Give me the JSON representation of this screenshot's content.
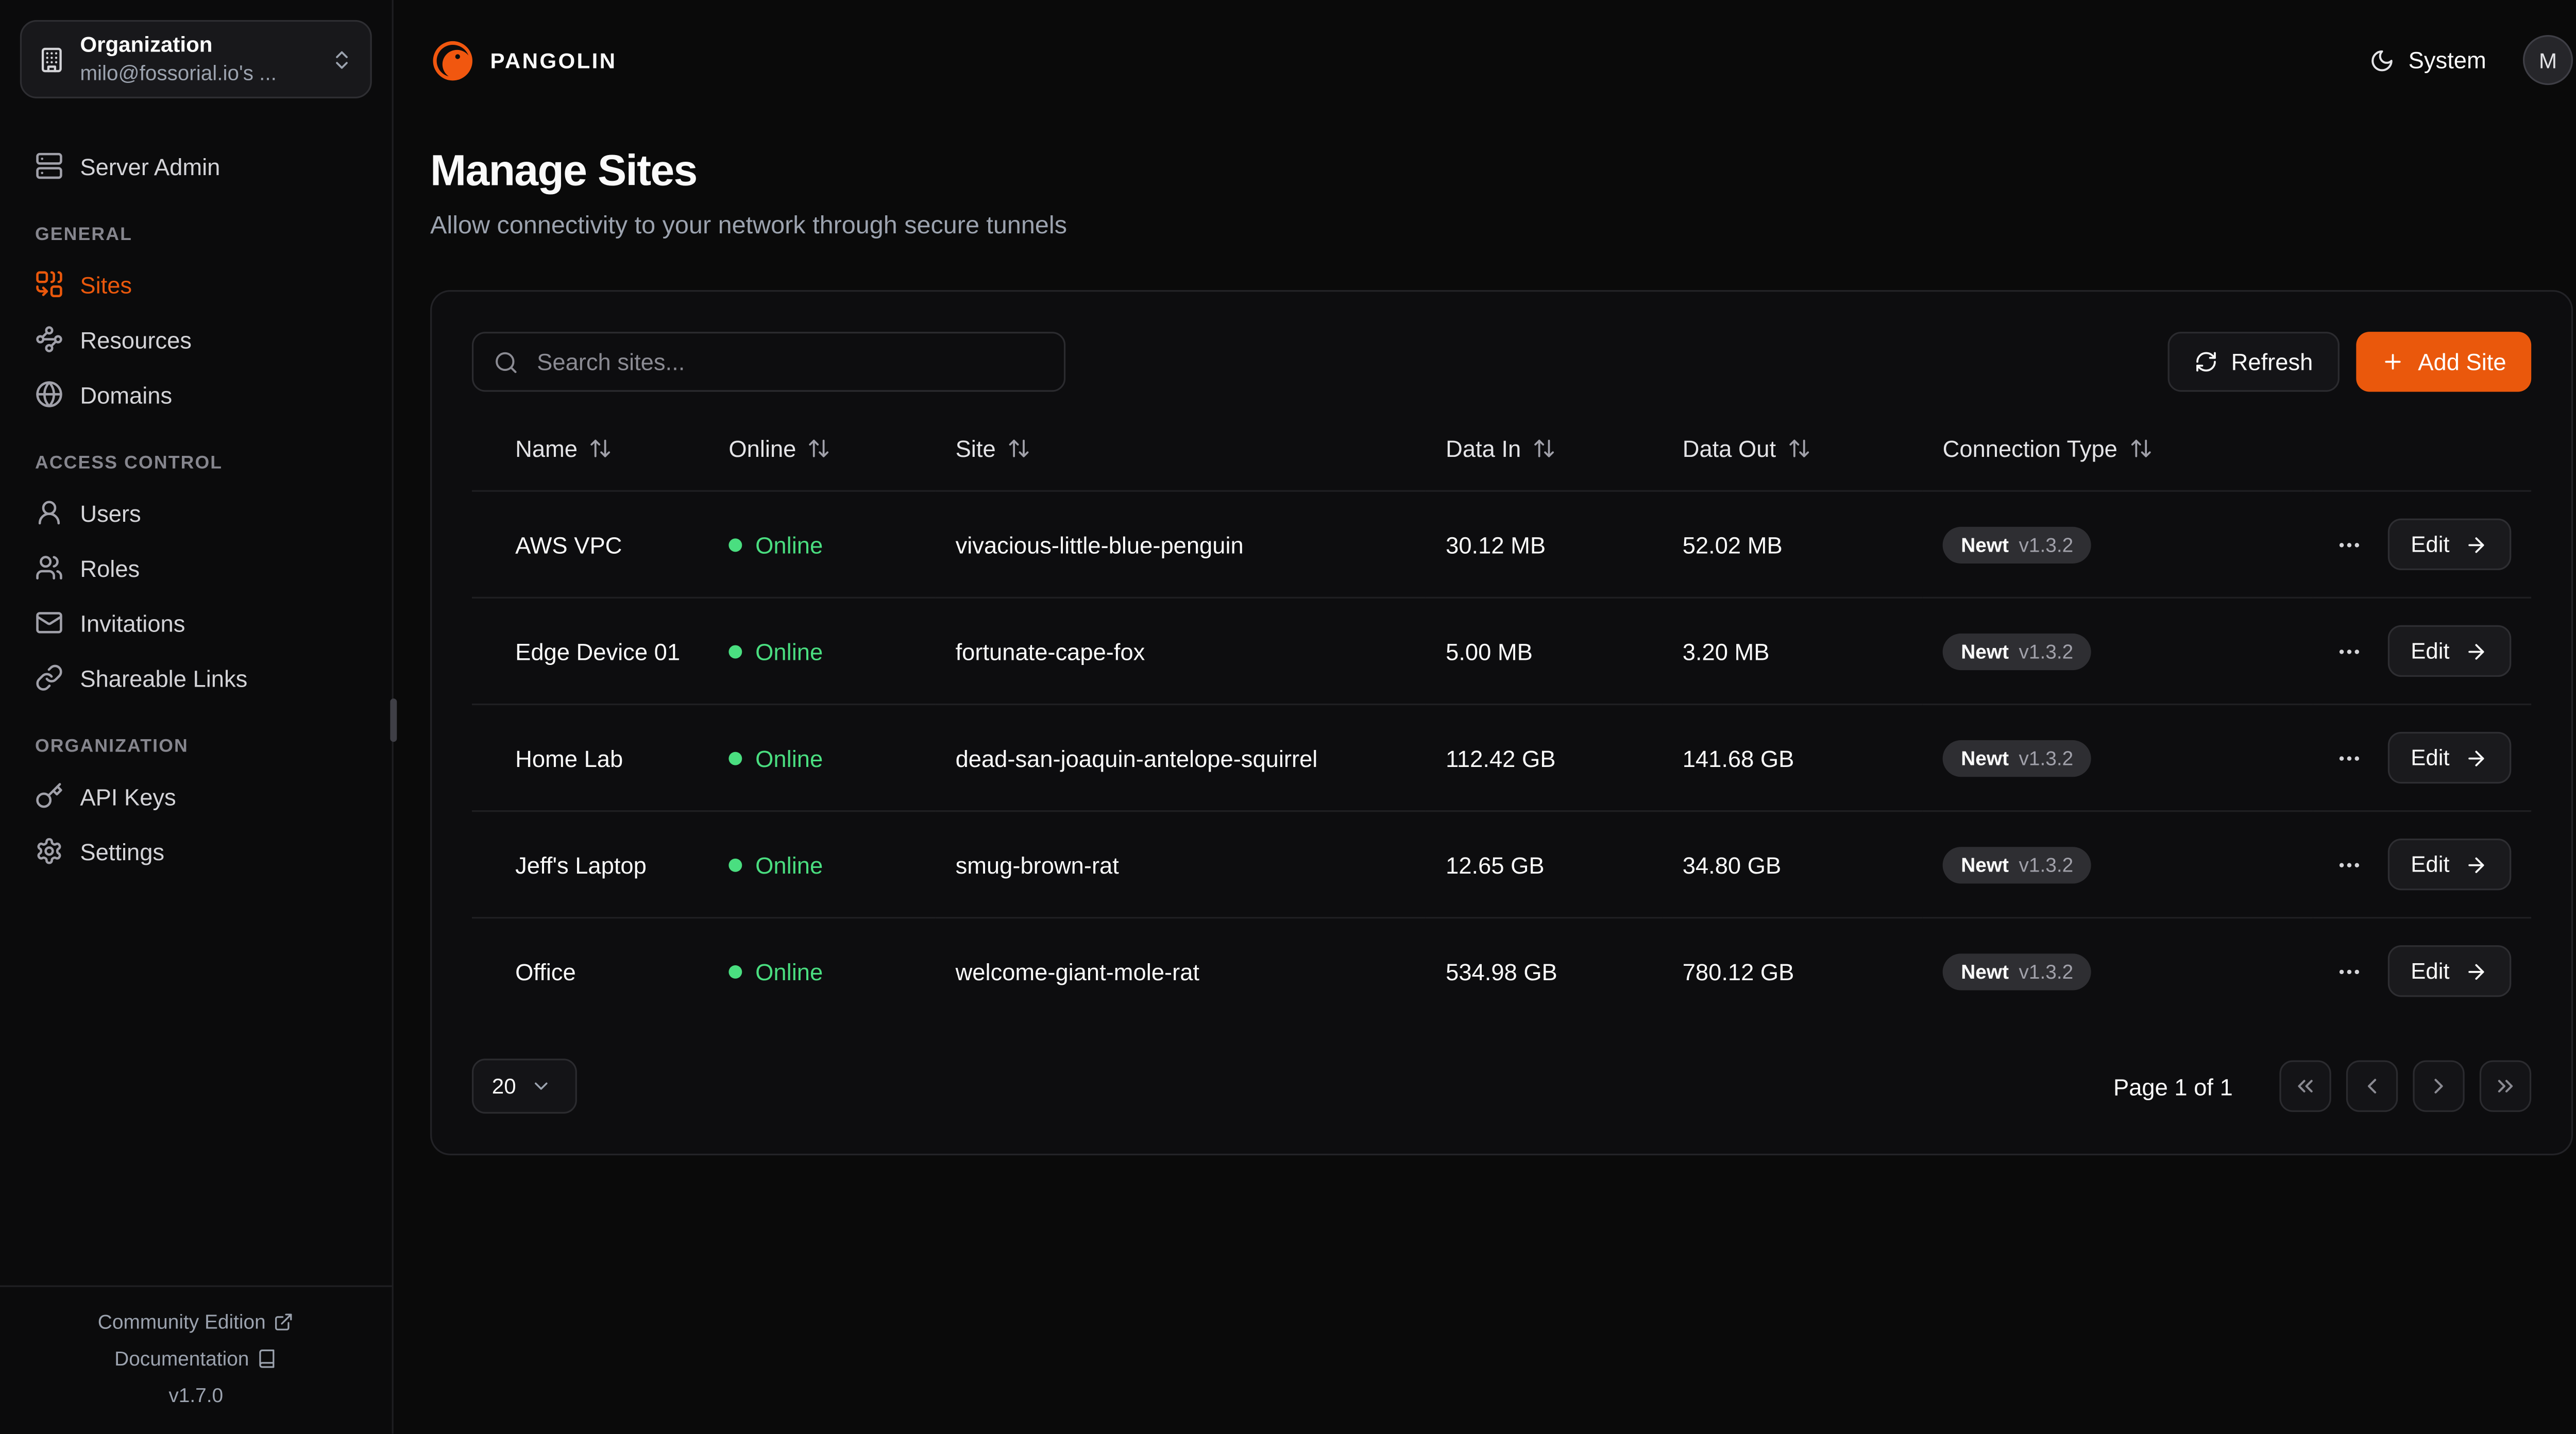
{
  "colors": {
    "accent": "#ea580c",
    "online_green": "#4ade80"
  },
  "sidebar": {
    "org_selector": {
      "title": "Organization",
      "subtitle": "milo@fossorial.io's ...",
      "icon": "building-icon"
    },
    "top_items": [
      {
        "label": "Server Admin",
        "icon": "server-icon"
      }
    ],
    "sections": [
      {
        "label": "GENERAL",
        "items": [
          {
            "label": "Sites",
            "icon": "sites-icon",
            "active": true
          },
          {
            "label": "Resources",
            "icon": "resources-icon",
            "active": false
          },
          {
            "label": "Domains",
            "icon": "globe-icon",
            "active": false
          }
        ]
      },
      {
        "label": "ACCESS CONTROL",
        "items": [
          {
            "label": "Users",
            "icon": "user-icon",
            "active": false
          },
          {
            "label": "Roles",
            "icon": "users-icon",
            "active": false
          },
          {
            "label": "Invitations",
            "icon": "mail-icon",
            "active": false
          },
          {
            "label": "Shareable Links",
            "icon": "link-icon",
            "active": false
          }
        ]
      },
      {
        "label": "ORGANIZATION",
        "items": [
          {
            "label": "API Keys",
            "icon": "key-icon",
            "active": false
          },
          {
            "label": "Settings",
            "icon": "gear-icon",
            "active": false
          }
        ]
      }
    ],
    "footer": {
      "community_edition": "Community Edition",
      "documentation": "Documentation",
      "version": "v1.7.0"
    }
  },
  "header": {
    "brand": "PANGOLIN",
    "theme": {
      "label": "System",
      "icon": "moon-icon"
    },
    "avatar": "M"
  },
  "page": {
    "title": "Manage Sites",
    "subtitle": "Allow connectivity to your network through secure tunnels"
  },
  "toolbar": {
    "search_placeholder": "Search sites...",
    "refresh_label": "Refresh",
    "add_site_label": "Add Site"
  },
  "table": {
    "columns": [
      {
        "label": "Name",
        "sortable": true
      },
      {
        "label": "Online",
        "sortable": true
      },
      {
        "label": "Site",
        "sortable": true
      },
      {
        "label": "Data In",
        "sortable": true
      },
      {
        "label": "Data Out",
        "sortable": true
      },
      {
        "label": "Connection Type",
        "sortable": true
      },
      {
        "label": "",
        "sortable": false
      }
    ],
    "rows": [
      {
        "name": "AWS VPC",
        "online": "Online",
        "site": "vivacious-little-blue-penguin",
        "data_in": "30.12 MB",
        "data_out": "52.02 MB",
        "connection_type": "Newt",
        "connection_version": "v1.3.2",
        "edit_label": "Edit"
      },
      {
        "name": "Edge Device 01",
        "online": "Online",
        "site": "fortunate-cape-fox",
        "data_in": "5.00 MB",
        "data_out": "3.20 MB",
        "connection_type": "Newt",
        "connection_version": "v1.3.2",
        "edit_label": "Edit"
      },
      {
        "name": "Home Lab",
        "online": "Online",
        "site": "dead-san-joaquin-antelope-squirrel",
        "data_in": "112.42 GB",
        "data_out": "141.68 GB",
        "connection_type": "Newt",
        "connection_version": "v1.3.2",
        "edit_label": "Edit"
      },
      {
        "name": "Jeff's Laptop",
        "online": "Online",
        "site": "smug-brown-rat",
        "data_in": "12.65 GB",
        "data_out": "34.80 GB",
        "connection_type": "Newt",
        "connection_version": "v1.3.2",
        "edit_label": "Edit"
      },
      {
        "name": "Office",
        "online": "Online",
        "site": "welcome-giant-mole-rat",
        "data_in": "534.98 GB",
        "data_out": "780.12 GB",
        "connection_type": "Newt",
        "connection_version": "v1.3.2",
        "edit_label": "Edit"
      }
    ]
  },
  "pagination": {
    "page_size": "20",
    "page_info": "Page 1 of 1"
  }
}
